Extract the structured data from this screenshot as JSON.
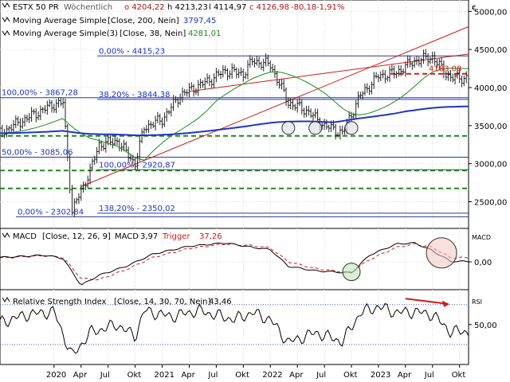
{
  "chart_data": [
    {
      "type": "candlestick",
      "panel": "price",
      "instrument": {
        "title": "ESTX 50 PR",
        "interval": "Wöchentlich",
        "open_label": "o 4204,22",
        "high_label": "h 4213,23",
        "low_label": "l 4114,97",
        "close_label": "c 4126,98",
        "change_label": "-80,18",
        "change_pct_label": "-1,91%"
      },
      "indicators": [
        {
          "label": "Moving Average Simple",
          "params": "[Close, 200, Nein]",
          "value_label": "3797,45",
          "color": "#1f35c4",
          "show_legend_line": true
        },
        {
          "label": "Moving Average Simple(3)",
          "params": "[Close, 38, Nein]",
          "value_label": "4281,01",
          "color": "#1f8a1f",
          "show_legend_line": true
        }
      ],
      "currency_label": "€",
      "ylim": [
        2150,
        5150
      ],
      "y_ticks": [
        2500,
        3000,
        3500,
        4000,
        4500,
        5000
      ],
      "y_tick_labels": [
        "2500,00",
        "3000,00",
        "3500,00",
        "4000,00",
        "4500,00",
        "5000,00"
      ],
      "last_price_label": "4183,08",
      "fib_levels": [
        {
          "label": "0,00% - 4415,23",
          "value": 4415.23
        },
        {
          "label": "100,00% - 3867,28",
          "value": 3867.28
        },
        {
          "label": "38,20% - 3844,38",
          "value": 3844.38
        },
        {
          "label": "50,00% - 3085,06",
          "value": 3085.06
        },
        {
          "label": "100,00% - 2920,87",
          "value": 2920.87
        },
        {
          "label": "0,00% - 2302,84",
          "value": 2302.84
        },
        {
          "label": "138,20% - 2350,02",
          "value": 2350.02
        }
      ],
      "support_levels_dashed": [
        4180,
        3365,
        2910,
        2675
      ],
      "price_series_approx": [
        {
          "date": "2019-07",
          "close": 3400
        },
        {
          "date": "2019-10",
          "close": 3600
        },
        {
          "date": "2020-01",
          "close": 3780
        },
        {
          "date": "2020-02",
          "close": 3800
        },
        {
          "date": "2020-03",
          "close": 2380
        },
        {
          "date": "2020-05",
          "close": 2900
        },
        {
          "date": "2020-06",
          "close": 3250
        },
        {
          "date": "2020-08",
          "close": 3300
        },
        {
          "date": "2020-10",
          "close": 3000
        },
        {
          "date": "2020-11",
          "close": 3480
        },
        {
          "date": "2021-01",
          "close": 3580
        },
        {
          "date": "2021-03",
          "close": 3900
        },
        {
          "date": "2021-06",
          "close": 4080
        },
        {
          "date": "2021-08",
          "close": 4220
        },
        {
          "date": "2021-10",
          "close": 4180
        },
        {
          "date": "2021-11",
          "close": 4350
        },
        {
          "date": "2022-01",
          "close": 4300
        },
        {
          "date": "2022-03",
          "close": 3800
        },
        {
          "date": "2022-05",
          "close": 3700
        },
        {
          "date": "2022-07",
          "close": 3500
        },
        {
          "date": "2022-09",
          "close": 3400
        },
        {
          "date": "2022-11",
          "close": 3900
        },
        {
          "date": "2023-01",
          "close": 4150
        },
        {
          "date": "2023-03",
          "close": 4200
        },
        {
          "date": "2023-05",
          "close": 4350
        },
        {
          "date": "2023-07",
          "close": 4400
        },
        {
          "date": "2023-08",
          "close": 4250
        },
        {
          "date": "2023-09",
          "close": 4127
        }
      ]
    },
    {
      "type": "line",
      "panel": "macd",
      "title": "MACD",
      "params": "[Close, 12, 26, 9]",
      "macd_label": "MACD",
      "macd_value": "3,97",
      "trigger_label": "Trigger",
      "trigger_value": "37,26",
      "side_label": "MACD",
      "y_tick_labels": [
        "0,00"
      ],
      "ylim": [
        -250,
        300
      ],
      "macd_series_approx": [
        {
          "date": "2019-07",
          "value": 40
        },
        {
          "date": "2019-12",
          "value": 60
        },
        {
          "date": "2020-02",
          "value": 30
        },
        {
          "date": "2020-04",
          "value": -210
        },
        {
          "date": "2020-06",
          "value": -120
        },
        {
          "date": "2020-09",
          "value": -40
        },
        {
          "date": "2020-12",
          "value": 70
        },
        {
          "date": "2021-04",
          "value": 140
        },
        {
          "date": "2021-08",
          "value": 170
        },
        {
          "date": "2021-11",
          "value": 130
        },
        {
          "date": "2022-01",
          "value": 110
        },
        {
          "date": "2022-03",
          "value": -40
        },
        {
          "date": "2022-06",
          "value": -80
        },
        {
          "date": "2022-08",
          "value": -90
        },
        {
          "date": "2022-10",
          "value": -100
        },
        {
          "date": "2022-12",
          "value": 60
        },
        {
          "date": "2023-03",
          "value": 160
        },
        {
          "date": "2023-05",
          "value": 170
        },
        {
          "date": "2023-07",
          "value": 100
        },
        {
          "date": "2023-09",
          "value": 4
        }
      ],
      "trigger_series_approx": [
        {
          "date": "2019-07",
          "value": 35
        },
        {
          "date": "2019-12",
          "value": 55
        },
        {
          "date": "2020-02",
          "value": 40
        },
        {
          "date": "2020-04",
          "value": -150
        },
        {
          "date": "2020-06",
          "value": -160
        },
        {
          "date": "2020-09",
          "value": -70
        },
        {
          "date": "2020-12",
          "value": 40
        },
        {
          "date": "2021-04",
          "value": 120
        },
        {
          "date": "2021-08",
          "value": 160
        },
        {
          "date": "2021-11",
          "value": 145
        },
        {
          "date": "2022-01",
          "value": 125
        },
        {
          "date": "2022-03",
          "value": 0
        },
        {
          "date": "2022-06",
          "value": -60
        },
        {
          "date": "2022-08",
          "value": -80
        },
        {
          "date": "2022-10",
          "value": -95
        },
        {
          "date": "2022-12",
          "value": 20
        },
        {
          "date": "2023-03",
          "value": 130
        },
        {
          "date": "2023-05",
          "value": 160
        },
        {
          "date": "2023-07",
          "value": 130
        },
        {
          "date": "2023-09",
          "value": 37
        }
      ]
    },
    {
      "type": "line",
      "panel": "rsi",
      "title": "Relative Strength Index",
      "params": "[Close, 14, 30, 70, Nein]",
      "value_label": "43,46",
      "side_label": "RSI",
      "y_tick_labels": [
        "50,00"
      ],
      "ylim": [
        10,
        85
      ],
      "overbought": 70,
      "oversold": 30,
      "rsi_series_approx": [
        {
          "date": "2019-07",
          "value": 52
        },
        {
          "date": "2019-10",
          "value": 60
        },
        {
          "date": "2020-01",
          "value": 63
        },
        {
          "date": "2020-03",
          "value": 18
        },
        {
          "date": "2020-05",
          "value": 42
        },
        {
          "date": "2020-08",
          "value": 50
        },
        {
          "date": "2020-10",
          "value": 38
        },
        {
          "date": "2020-11",
          "value": 64
        },
        {
          "date": "2021-02",
          "value": 58
        },
        {
          "date": "2021-05",
          "value": 64
        },
        {
          "date": "2021-09",
          "value": 55
        },
        {
          "date": "2021-11",
          "value": 62
        },
        {
          "date": "2022-01",
          "value": 55
        },
        {
          "date": "2022-03",
          "value": 32
        },
        {
          "date": "2022-06",
          "value": 42
        },
        {
          "date": "2022-09",
          "value": 33
        },
        {
          "date": "2022-11",
          "value": 62
        },
        {
          "date": "2023-01",
          "value": 68
        },
        {
          "date": "2023-03",
          "value": 62
        },
        {
          "date": "2023-05",
          "value": 63
        },
        {
          "date": "2023-07",
          "value": 60
        },
        {
          "date": "2023-09",
          "value": 43
        }
      ]
    }
  ],
  "x_axis": {
    "date_range": [
      "2019-07",
      "2023-11"
    ],
    "ticks": [
      {
        "date": "2020-01",
        "label": "2020"
      },
      {
        "date": "2020-04",
        "label": "Apr"
      },
      {
        "date": "2020-07",
        "label": "Jul"
      },
      {
        "date": "2020-10",
        "label": "Okt"
      },
      {
        "date": "2021-01",
        "label": "2021"
      },
      {
        "date": "2021-04",
        "label": "Apr"
      },
      {
        "date": "2021-07",
        "label": "Jul"
      },
      {
        "date": "2021-10",
        "label": "Okt"
      },
      {
        "date": "2022-01",
        "label": "2022"
      },
      {
        "date": "2022-04",
        "label": "Apr"
      },
      {
        "date": "2022-07",
        "label": "Jul"
      },
      {
        "date": "2022-10",
        "label": "Okt"
      },
      {
        "date": "2023-01",
        "label": "2023"
      },
      {
        "date": "2023-04",
        "label": "Apr"
      },
      {
        "date": "2023-07",
        "label": "Jul"
      },
      {
        "date": "2023-10",
        "label": "Okt"
      }
    ]
  },
  "colors": {
    "up": "#1a8f1a",
    "down": "#b01515",
    "ma200": "#1f35c4",
    "ma38": "#1f8a1f",
    "trendline": "#d01a1a",
    "support": "#1a8a1a",
    "macd": "#000000",
    "trigger": "#d01a1a",
    "rsi": "#000000",
    "grid": "#d9d9d9"
  }
}
